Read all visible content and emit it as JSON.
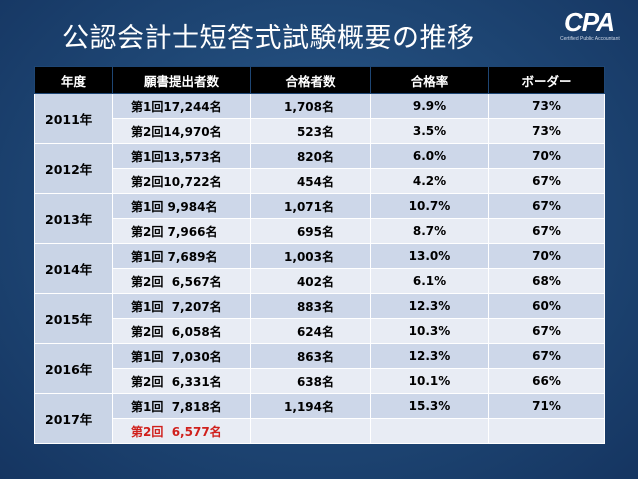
{
  "title": "公認会計士短答式試験概要の推移",
  "logo": {
    "text": "CPA",
    "subtitle": "Certified Public Accountant"
  },
  "colors": {
    "background": "#1e4674",
    "header_bg": "#000000",
    "accent_red": "#d0201c"
  },
  "table": {
    "headers": [
      "年度",
      "願書提出者数",
      "合格者数",
      "合格率",
      "ボーダー"
    ],
    "years": [
      {
        "year": "2011年",
        "rows": [
          {
            "applicants": "第1回17,244名",
            "passed": "1,708名",
            "rate": "9.9%",
            "border": "73%"
          },
          {
            "applicants": "第2回14,970名",
            "passed": "523名",
            "rate": "3.5%",
            "border": "73%"
          }
        ]
      },
      {
        "year": "2012年",
        "rows": [
          {
            "applicants": "第1回13,573名",
            "passed": "820名",
            "rate": "6.0%",
            "border": "70%"
          },
          {
            "applicants": "第2回10,722名",
            "passed": "454名",
            "rate": "4.2%",
            "border": "67%"
          }
        ]
      },
      {
        "year": "2013年",
        "rows": [
          {
            "applicants": "第1回 9,984名",
            "passed": "1,071名",
            "rate": "10.7%",
            "border": "67%"
          },
          {
            "applicants": "第2回 7,966名",
            "passed": "695名",
            "rate": "8.7%",
            "border": "67%"
          }
        ]
      },
      {
        "year": "2014年",
        "rows": [
          {
            "applicants": "第1回 7,689名",
            "passed": "1,003名",
            "rate": "13.0%",
            "border": "70%"
          },
          {
            "applicants": "第2回  6,567名",
            "passed": "402名",
            "rate": "6.1%",
            "border": "68%"
          }
        ]
      },
      {
        "year": "2015年",
        "rows": [
          {
            "applicants": "第1回  7,207名",
            "passed": "883名",
            "rate": "12.3%",
            "border": "60%"
          },
          {
            "applicants": "第2回  6,058名",
            "passed": "624名",
            "rate": "10.3%",
            "border": "67%"
          }
        ]
      },
      {
        "year": "2016年",
        "rows": [
          {
            "applicants": "第1回  7,030名",
            "passed": "863名",
            "rate": "12.3%",
            "border": "67%"
          },
          {
            "applicants": "第2回  6,331名",
            "passed": "638名",
            "rate": "10.1%",
            "border": "66%"
          }
        ]
      },
      {
        "year": "2017年",
        "rows": [
          {
            "applicants": "第1回  7,818名",
            "passed": "1,194名",
            "rate": "15.3%",
            "border": "71%"
          },
          {
            "applicants": "第2回  6,577名",
            "passed": "",
            "rate": "",
            "border": ""
          }
        ]
      }
    ]
  }
}
